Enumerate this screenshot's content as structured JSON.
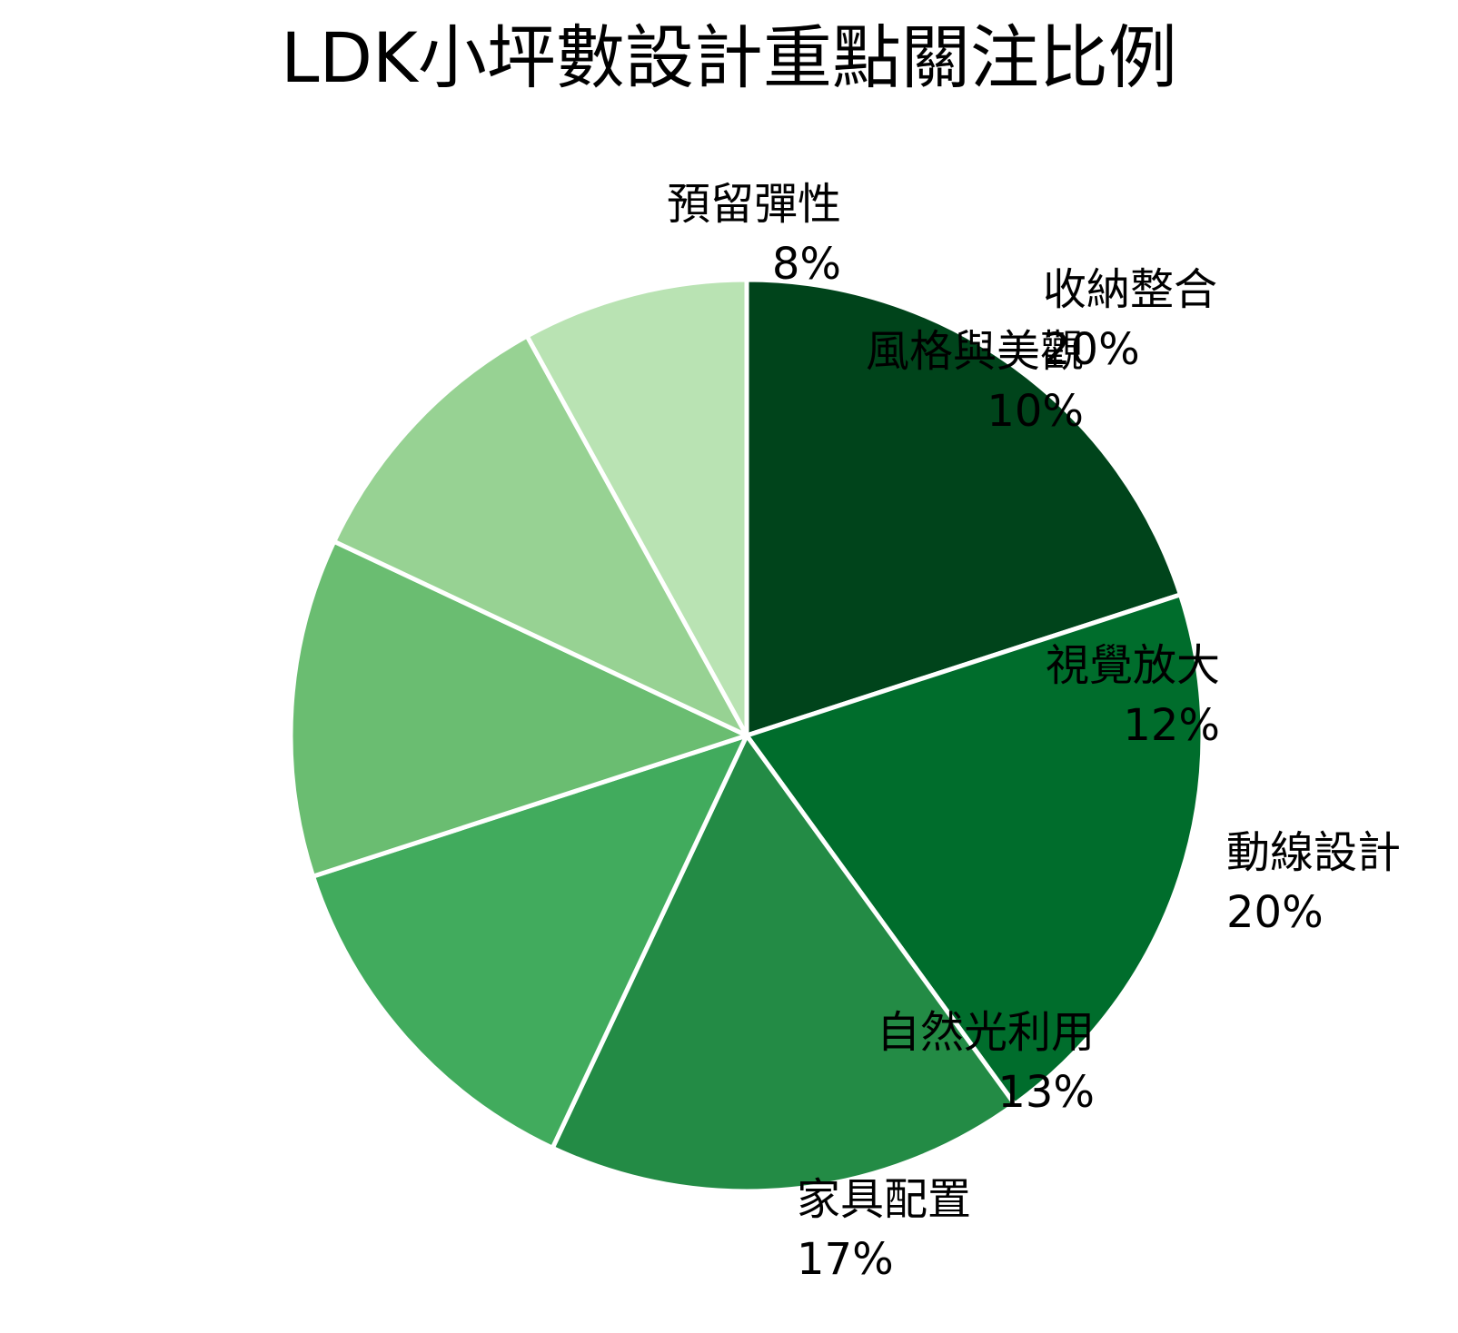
{
  "chart_data": {
    "type": "pie",
    "title": "LDK小坪數設計重點關注比例",
    "slices": [
      {
        "label": "收納整合",
        "value": 20,
        "value_label": "20%",
        "color": "#00441b"
      },
      {
        "label": "動線設計",
        "value": 20,
        "value_label": "20%",
        "color": "#006d2c"
      },
      {
        "label": "家具配置",
        "value": 17,
        "value_label": "17%",
        "color": "#238b45"
      },
      {
        "label": "自然光利用",
        "value": 13,
        "value_label": "13%",
        "color": "#41ab5d"
      },
      {
        "label": "視覺放大",
        "value": 12,
        "value_label": "12%",
        "color": "#6abd71"
      },
      {
        "label": "風格與美觀",
        "value": 10,
        "value_label": "10%",
        "color": "#97d293"
      },
      {
        "label": "預留彈性",
        "value": 8,
        "value_label": "8%",
        "color": "#b9e3b3"
      }
    ],
    "start_angle": "12 o'clock",
    "direction": "clockwise",
    "legend": "none"
  }
}
